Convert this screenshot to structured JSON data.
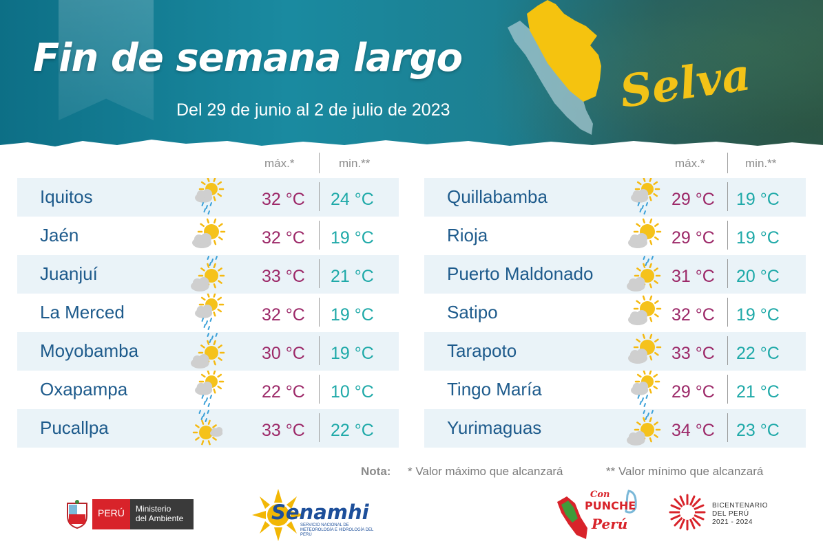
{
  "header": {
    "title": "Fin de semana largo",
    "subtitle": "Del 29 de junio al 2 de julio de 2023",
    "region": "Selva"
  },
  "columns": {
    "max_label": "máx.*",
    "min_label": "min.**"
  },
  "left_table": [
    {
      "city": "Iquitos",
      "icon": "cloud-sun-rain-icon",
      "max": "32 °C",
      "min": "24 °C"
    },
    {
      "city": "Jaén",
      "icon": "partly-cloudy-icon",
      "max": "32 °C",
      "min": "19 °C"
    },
    {
      "city": "Juanjuí",
      "icon": "partly-cloudy-rain-icon",
      "max": "33 °C",
      "min": "21 °C"
    },
    {
      "city": "La Merced",
      "icon": "cloud-sun-rain-icon",
      "max": "32 °C",
      "min": "19 °C"
    },
    {
      "city": "Moyobamba",
      "icon": "partly-cloudy-rain-icon",
      "max": "30 °C",
      "min": "19 °C"
    },
    {
      "city": "Oxapampa",
      "icon": "cloud-sun-rain-icon",
      "max": "22 °C",
      "min": "10 °C"
    },
    {
      "city": "Pucallpa",
      "icon": "sun-cloud-icon",
      "max": "33 °C",
      "min": "22 °C"
    }
  ],
  "right_table": [
    {
      "city": "Quillabamba",
      "icon": "cloud-sun-rain-icon",
      "max": "29 °C",
      "min": "19 °C"
    },
    {
      "city": "Rioja",
      "icon": "partly-cloudy-icon",
      "max": "29 °C",
      "min": "19 °C"
    },
    {
      "city": "Puerto Maldonado",
      "icon": "partly-cloudy-rain-icon",
      "max": "31 °C",
      "min": "20 °C"
    },
    {
      "city": "Satipo",
      "icon": "partly-cloudy-icon",
      "max": "32 °C",
      "min": "19 °C"
    },
    {
      "city": "Tarapoto",
      "icon": "partly-cloudy-icon",
      "max": "33 °C",
      "min": "22 °C"
    },
    {
      "city": "Tingo María",
      "icon": "cloud-sun-rain-icon",
      "max": "29 °C",
      "min": "21 °C"
    },
    {
      "city": "Yurimaguas",
      "icon": "partly-cloudy-rain-icon",
      "max": "34 °C",
      "min": "23 °C"
    }
  ],
  "note": {
    "label": "Nota:",
    "max_note": "* Valor máximo que alcanzará",
    "min_note": "** Valor mínimo que alcanzará"
  },
  "footer": {
    "peru": "PERÚ",
    "ministry_line1": "Ministerio",
    "ministry_line2": "del Ambiente",
    "senamhi": "Senamhi",
    "senamhi_sub": "SERVICIO NACIONAL DE METEOROLOGÍA E HIDROLOGÍA DEL PERÚ",
    "punche_line1": "Con",
    "punche_line2": "PUNCHE",
    "punche_line3": "Perú",
    "bicentenario_line1": "BICENTENARIO",
    "bicentenario_line2": "DEL PERÚ",
    "bicentenario_line3": "2021 - 2024"
  },
  "colors": {
    "city": "#1e5b8c",
    "max": "#9c2868",
    "min": "#1ea9a8",
    "region": "#f3c317",
    "row_shade": "#eaf3f8"
  }
}
